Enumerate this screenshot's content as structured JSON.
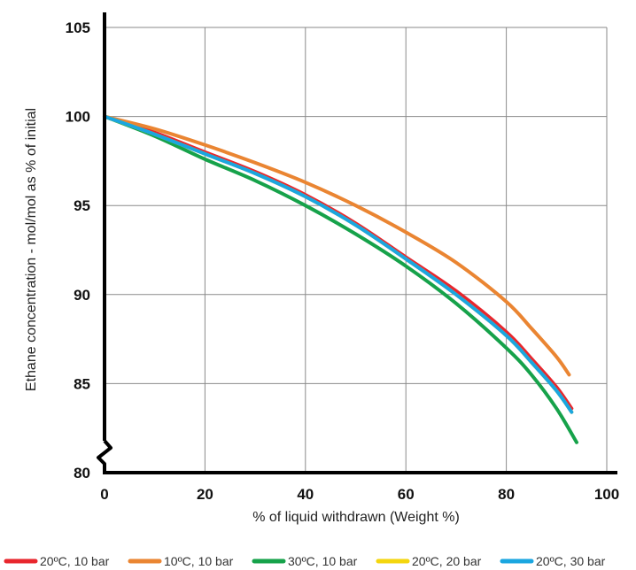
{
  "chart_data": {
    "type": "line",
    "title": "",
    "xlabel": "% of liquid withdrawn (Weight %)",
    "ylabel": "Ethane concentration - mol/mol as % of initial",
    "xlim": [
      0,
      100
    ],
    "ylim": [
      80,
      105
    ],
    "x_ticks": [
      "0",
      "20",
      "40",
      "60",
      "80",
      "100"
    ],
    "y_ticks": [
      "80",
      "85",
      "90",
      "95",
      "100",
      "105"
    ],
    "grid": true,
    "y_axis_break": true,
    "legend_position": "bottom",
    "series": [
      {
        "name": "20ºC, 10 bar",
        "color": "#e8262d",
        "x": [
          0,
          10,
          20,
          30,
          40,
          50,
          60,
          70,
          80,
          85,
          90,
          93
        ],
        "y": [
          100,
          99.1,
          98.0,
          96.9,
          95.6,
          94.0,
          92.1,
          90.2,
          87.9,
          86.4,
          84.8,
          83.6
        ]
      },
      {
        "name": "10ºC, 10 bar",
        "color": "#ea8532",
        "x": [
          0,
          10,
          20,
          30,
          40,
          50,
          60,
          70,
          80,
          85,
          90,
          92.5
        ],
        "y": [
          100,
          99.3,
          98.4,
          97.4,
          96.3,
          95.0,
          93.5,
          91.8,
          89.6,
          88.1,
          86.5,
          85.5
        ]
      },
      {
        "name": "30ºC, 10 bar",
        "color": "#16a24a",
        "x": [
          0,
          10,
          20,
          30,
          40,
          50,
          60,
          70,
          80,
          85,
          90,
          94
        ],
        "y": [
          100,
          98.9,
          97.6,
          96.4,
          95.0,
          93.4,
          91.6,
          89.5,
          87.0,
          85.5,
          83.6,
          81.7
        ]
      },
      {
        "name": "20ºC, 20 bar",
        "color": "#f4d60e",
        "x": [
          0,
          10,
          20,
          30,
          40,
          50,
          60,
          70,
          80,
          85,
          90,
          93
        ],
        "y": [
          100,
          99.0,
          97.9,
          96.8,
          95.5,
          93.9,
          92.0,
          90.0,
          87.7,
          86.2,
          84.6,
          83.4
        ]
      },
      {
        "name": "20ºC, 30 bar",
        "color": "#1aa6e0",
        "x": [
          0,
          10,
          20,
          30,
          40,
          50,
          60,
          70,
          80,
          85,
          90,
          93
        ],
        "y": [
          100,
          99.0,
          97.9,
          96.8,
          95.5,
          93.9,
          92.0,
          90.0,
          87.7,
          86.2,
          84.6,
          83.4
        ]
      }
    ]
  }
}
